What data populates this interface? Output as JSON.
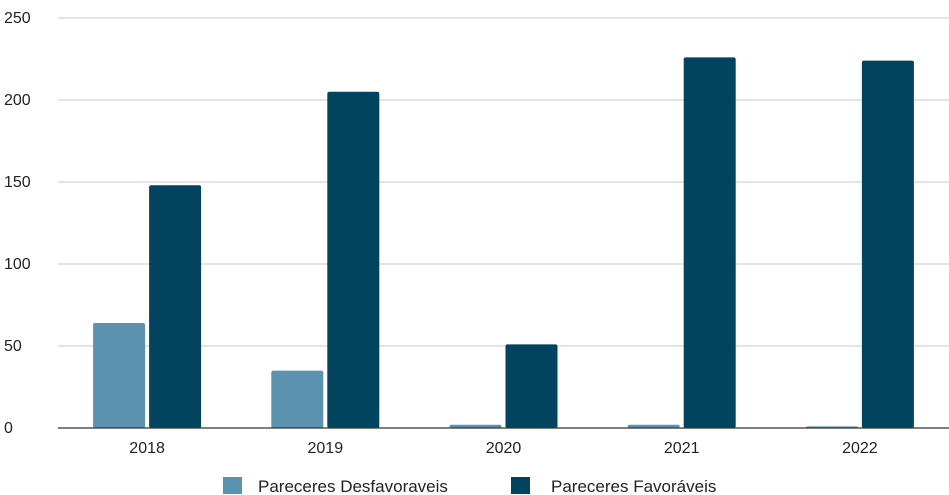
{
  "chart_data": {
    "type": "bar",
    "title": "",
    "xlabel": "",
    "ylabel": "",
    "categories": [
      "2018",
      "2019",
      "2020",
      "2021",
      "2022"
    ],
    "series": [
      {
        "name": "Pareceres Desfavoraveis",
        "color": "#5b92b0",
        "values": [
          64,
          35,
          2,
          2,
          1
        ]
      },
      {
        "name": "Pareceres Favoráveis",
        "color": "#02445f",
        "values": [
          148,
          205,
          51,
          226,
          224
        ]
      }
    ],
    "ylim": [
      0,
      250
    ],
    "yticks": [
      "0",
      "50",
      "100",
      "150",
      "200",
      "250"
    ],
    "grid": true,
    "legend_position": "bottom"
  }
}
